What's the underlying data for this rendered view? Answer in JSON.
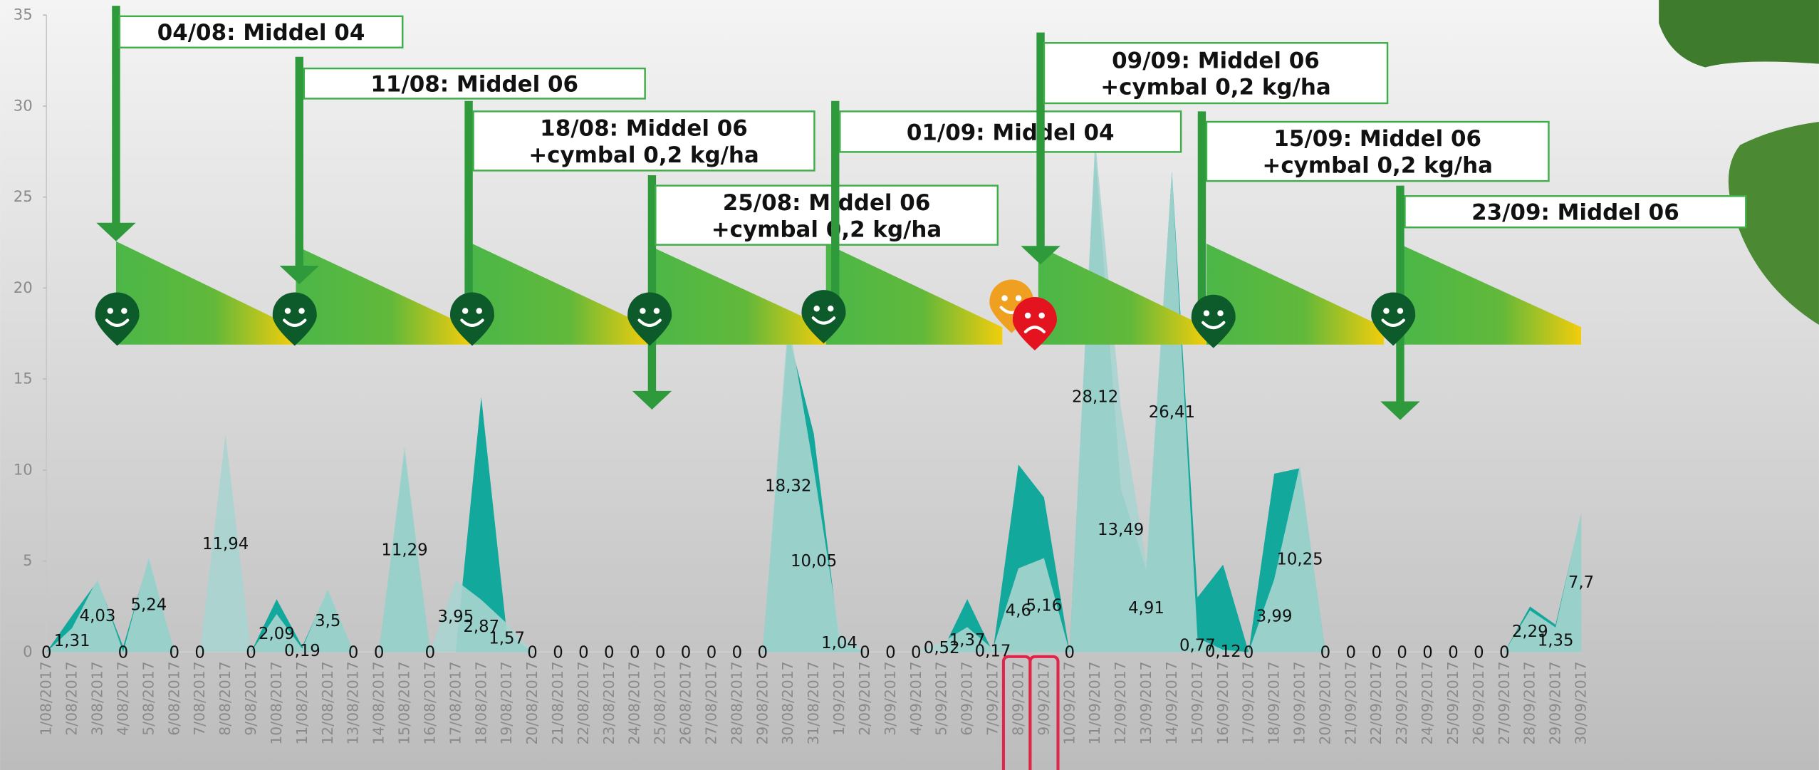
{
  "chart_data": {
    "type": "area",
    "categories": [
      "1/08/2017",
      "2/08/2017",
      "3/08/2017",
      "4/08/2017",
      "5/08/2017",
      "6/08/2017",
      "7/08/2017",
      "8/08/2017",
      "9/08/2017",
      "10/08/2017",
      "11/08/2017",
      "12/08/2017",
      "13/08/2017",
      "14/08/2017",
      "15/08/2017",
      "16/08/2017",
      "17/08/2017",
      "18/08/2017",
      "19/08/2017",
      "20/08/2017",
      "21/08/2017",
      "22/08/2017",
      "23/08/2017",
      "24/08/2017",
      "25/08/2017",
      "26/08/2017",
      "27/08/2017",
      "28/08/2017",
      "29/08/2017",
      "30/08/2017",
      "31/08/2017",
      "1/09/2017",
      "2/09/2017",
      "3/09/2017",
      "4/09/2017",
      "5/09/2017",
      "6/09/2017",
      "7/09/2017",
      "8/09/2017",
      "9/09/2017",
      "10/09/2017",
      "11/09/2017",
      "12/09/2017",
      "13/09/2017",
      "14/09/2017",
      "15/09/2017",
      "16/09/2017",
      "17/09/2017",
      "18/09/2017",
      "19/09/2017",
      "20/09/2017",
      "21/09/2017",
      "22/09/2017",
      "23/09/2017",
      "24/09/2017",
      "25/09/2017",
      "26/09/2017",
      "27/09/2017",
      "28/09/2017",
      "29/09/2017",
      "30/09/2017"
    ],
    "series": [
      {
        "color": "#12a89c",
        "values": [
          0,
          2,
          3.9,
          0.3,
          5.1,
          0,
          0,
          0,
          0,
          2.9,
          0.3,
          3.4,
          0,
          0,
          11,
          0,
          0,
          14,
          1,
          0,
          0,
          0,
          0,
          0,
          0,
          0,
          0,
          0,
          0,
          17.5,
          12,
          0.5,
          0,
          0,
          0,
          0,
          2.9,
          0,
          10.3,
          8.5,
          0,
          27.5,
          9,
          4.5,
          26.4,
          3,
          4.8,
          0,
          9.8,
          10.1,
          0,
          0,
          0,
          0,
          0,
          0,
          0,
          0,
          2.5,
          1.5,
          7.6
        ]
      },
      {
        "color": "#a9d4cf",
        "values": [
          0,
          1.31,
          4.03,
          0,
          5.24,
          0,
          0,
          11.94,
          0,
          2.09,
          0.19,
          3.5,
          0,
          0,
          11.29,
          0,
          3.95,
          2.87,
          1.57,
          0,
          0,
          0,
          0,
          0,
          0,
          0,
          0,
          0,
          0,
          18.32,
          10.05,
          1.04,
          0,
          0,
          0,
          0.52,
          1.37,
          0.17,
          4.6,
          5.16,
          0,
          28.12,
          13.49,
          4.91,
          26.41,
          0.77,
          0.12,
          0,
          3.99,
          10.25,
          0,
          0,
          0,
          0,
          0,
          0,
          0,
          0,
          2.29,
          1.35,
          7.7
        ],
        "value_labels": [
          "0",
          "1,31",
          "4,03",
          "0",
          "5,24",
          "0",
          "0",
          "11,94",
          "0",
          "2,09",
          "0,19",
          "3,5",
          "0",
          "0",
          "11,29",
          "0",
          "3,95",
          "2,87",
          "1,57",
          "0",
          "0",
          "0",
          "0",
          "0",
          "0",
          "0",
          "0",
          "0",
          "0",
          "18,32",
          "10,05",
          "1,04",
          "0",
          "0",
          "0",
          "0,52",
          "1,37",
          "0,17",
          "4,6",
          "5,16",
          "0",
          "28,12",
          "13,49",
          "4,91",
          "26,41",
          "0,77",
          "0,12",
          "0",
          "3,99",
          "10,25",
          "0",
          "0",
          "0",
          "0",
          "0",
          "0",
          "0",
          "0",
          "2,29",
          "1,35",
          "7,7"
        ]
      }
    ],
    "ylim": [
      0,
      35
    ],
    "yticks": [
      0,
      5,
      10,
      15,
      20,
      25,
      30,
      35
    ],
    "annotations": [
      {
        "lines": [
          "04/08: Middel 04"
        ]
      },
      {
        "lines": [
          "11/08: Middel 06"
        ]
      },
      {
        "lines": [
          "18/08: Middel 06",
          "+cymbal 0,2 kg/ha"
        ]
      },
      {
        "lines": [
          "25/08: Middel 06",
          "+cymbal 0,2 kg/ha"
        ]
      },
      {
        "lines": [
          "01/09: Middel 04"
        ]
      },
      {
        "lines": [
          "09/09: Middel 06",
          "+cymbal 0,2 kg/ha"
        ]
      },
      {
        "lines": [
          "15/09: Middel 06",
          "+cymbal 0,2 kg/ha"
        ]
      },
      {
        "lines": [
          "23/09: Middel 06"
        ]
      }
    ]
  }
}
